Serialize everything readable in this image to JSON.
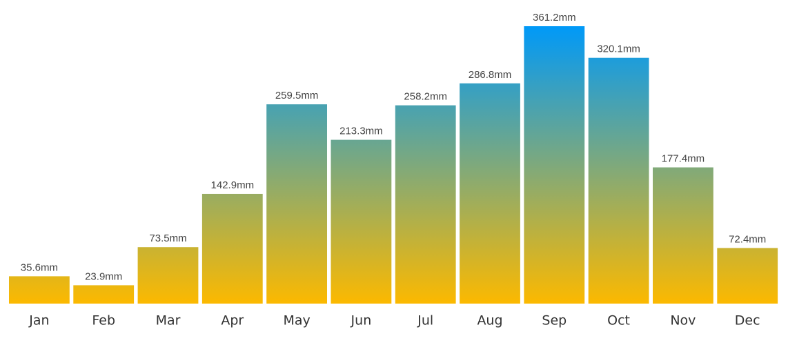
{
  "chart_data": {
    "type": "bar",
    "categories": [
      "Jan",
      "Feb",
      "Mar",
      "Apr",
      "May",
      "Jun",
      "Jul",
      "Aug",
      "Sep",
      "Oct",
      "Nov",
      "Dec"
    ],
    "values": [
      35.6,
      23.9,
      73.5,
      142.9,
      259.5,
      213.3,
      258.2,
      286.8,
      361.2,
      320.1,
      177.4,
      72.4
    ],
    "value_labels": [
      "35.6mm",
      "23.9mm",
      "73.5mm",
      "142.9mm",
      "259.5mm",
      "213.3mm",
      "258.2mm",
      "286.8mm",
      "361.2mm",
      "320.1mm",
      "177.4mm",
      "72.4mm"
    ],
    "gradient": [
      "#fcb900",
      "#0099f8"
    ]
  }
}
